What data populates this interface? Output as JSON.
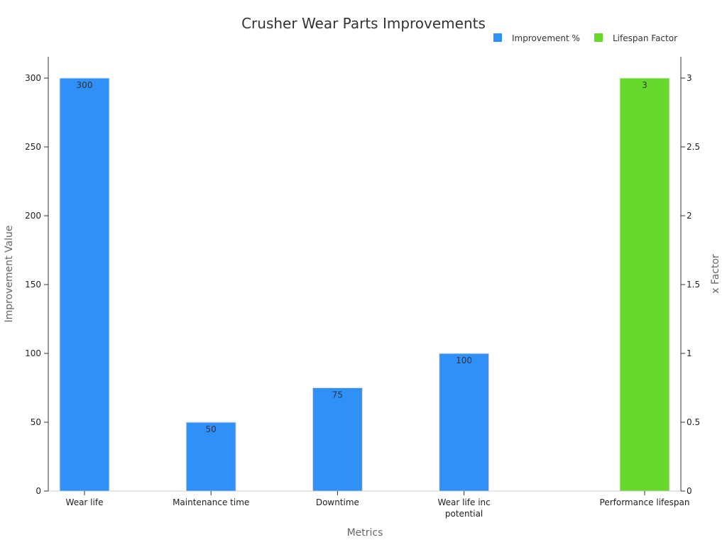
{
  "chart_data": {
    "type": "bar",
    "title": "Crusher Wear Parts Improvements",
    "xlabel": "Metrics",
    "ylabel": "Improvement Value",
    "y2label": "x Factor",
    "categories": [
      "Wear life",
      "Maintenance time",
      "Downtime",
      "Wear life inc potential",
      "Performance lifespan"
    ],
    "category_lines": [
      [
        "Wear life"
      ],
      [
        "Maintenance time"
      ],
      [
        "Downtime"
      ],
      [
        "Wear life inc",
        "potential"
      ],
      [
        "Performance lifespan"
      ]
    ],
    "ylim": [
      0,
      300
    ],
    "y2lim": [
      0,
      3
    ],
    "yticks": [
      0,
      50,
      100,
      150,
      200,
      250,
      300
    ],
    "y2ticks": [
      "0",
      "0.5",
      "1",
      "1.5",
      "2",
      "2.5",
      "3"
    ],
    "legend_position": "top-right",
    "series": [
      {
        "name": "Improvement %",
        "axis": "left",
        "color": "#2f91f8",
        "values": [
          300,
          50,
          75,
          100,
          null
        ]
      },
      {
        "name": "Lifespan Factor",
        "axis": "right",
        "color": "#66d92a",
        "values": [
          null,
          null,
          null,
          null,
          3
        ]
      }
    ]
  }
}
